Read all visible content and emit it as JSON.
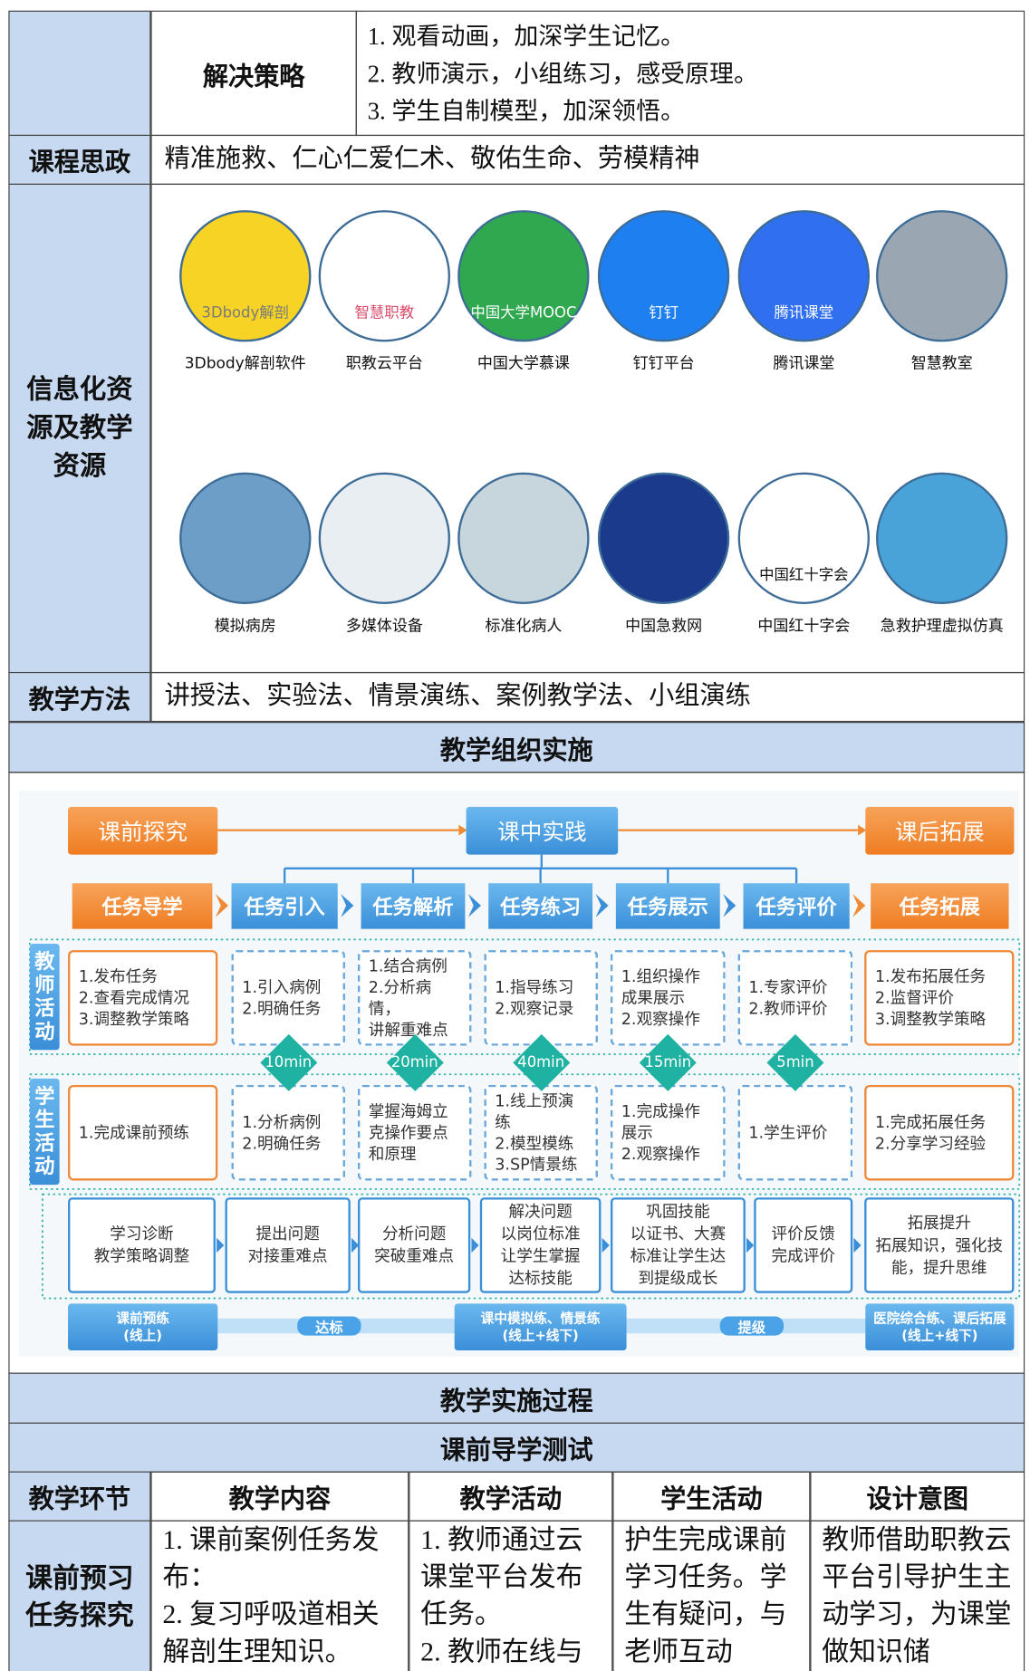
{
  "strategy": {
    "label": "解决策略",
    "items": [
      "1. 观看动画，加深学生记忆。",
      "2. 教师演示，小组练习，感受原理。",
      "3. 学生自制模型，加深领悟。"
    ]
  },
  "ideology": {
    "label": "课程思政",
    "text": "精准施救、仁心仁爱仁术、敬佑生命、劳模精神"
  },
  "resources": {
    "label": "信息化资源及教学资源",
    "items": [
      {
        "label": "3Dbody解剖软件",
        "icon_text": "3Dbody解剖"
      },
      {
        "label": "职教云平台",
        "icon_text": "智慧职教"
      },
      {
        "label": "中国大学慕课",
        "icon_text": "中国大学MOOC"
      },
      {
        "label": "钉钉平台",
        "icon_text": "钉钉"
      },
      {
        "label": "腾讯课堂",
        "icon_text": "腾讯课堂"
      },
      {
        "label": "智慧教室"
      },
      {
        "label": "模拟病房"
      },
      {
        "label": "多媒体设备"
      },
      {
        "label": "标准化病人"
      },
      {
        "label": "中国急救网"
      },
      {
        "label": "中国红十字会",
        "icon_text": "中国红十字会"
      },
      {
        "label": "急救护理虚拟仿真"
      }
    ]
  },
  "methods": {
    "label": "教学方法",
    "text": "讲授法、实验法、情景演练、案例教学法、小组演练"
  },
  "organization": {
    "title": "教学组织实施",
    "diagram": {
      "phases": [
        "课前探究",
        "课中实践",
        "课后拓展"
      ],
      "tasks": [
        "任务导学",
        "任务引入",
        "任务解析",
        "任务练习",
        "任务展示",
        "任务评价",
        "任务拓展"
      ],
      "teacher_label": "教师活动",
      "student_label": "学生活动",
      "teacher": [
        "1.发布任务\n2.查看完成情况\n3.调整教学策略",
        "1.引入病例\n2.明确任务",
        "1.结合病例\n2.分析病情，\n讲解重难点",
        "1.指导练习\n2.观察记录",
        "1.组织操作\n成果展示\n2.观察操作",
        "1.专家评价\n2.教师评价",
        "1.发布拓展任务\n2.监督评价\n3.调整教学策略"
      ],
      "durations": [
        "10min",
        "20min",
        "40min",
        "15min",
        "5min"
      ],
      "student": [
        "1.完成课前预练",
        "1.分析病例\n2.明确任务",
        "掌握海姆立\n克操作要点\n和原理",
        "1.线上预演练\n2.模型模练\n3.SP情景练",
        "1.完成操作\n展示\n2.观察操作",
        "1.学生评价",
        "1.完成拓展任务\n2.分享学习经验"
      ],
      "outcomes": [
        "学习诊断\n教学策略调整",
        "提出问题\n对接重难点",
        "分析问题\n突破重难点",
        "解决问题\n以岗位标准\n让学生掌握\n达标技能",
        "巩固技能\n以证书、大赛\n标准让学生达\n到提级成长",
        "评价反馈\n完成评价",
        "拓展提升\n拓展知识，强化技能，提升思维"
      ],
      "stages": [
        "课前预练\n(线上)",
        "课中模拟练、情景练\n(线上+线下)",
        "医院综合练、课后拓展\n(线上+线下)"
      ],
      "links": [
        "达标",
        "提级"
      ]
    }
  },
  "process": {
    "title": "教学实施过程",
    "subtitle": "课前导学测试",
    "headers": [
      "教学环节",
      "教学内容",
      "教学活动",
      "学生活动",
      "设计意图"
    ],
    "rows": [
      [
        "课前预习任务探究",
        "1. 课前案例任务发布：\n2. 复习呼吸道相关解剖生理知识。",
        "1. 教师通过云课堂平台发布任务。\n2. 教师在线与",
        "护生完成课前学习任务。学生有疑问，与老师互动",
        "教师借助职教云平台引导护生主动学习，为课堂做知识储"
      ]
    ]
  }
}
